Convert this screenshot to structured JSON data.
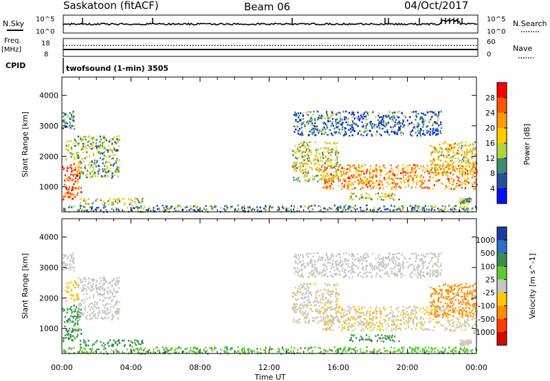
{
  "header": {
    "station": "Saskatoon (fitACF)",
    "beam": "Beam 06",
    "date": "04/Oct/2017"
  },
  "strip": {
    "nsky_label": "N.Sky",
    "nsearch_label": "N.Search",
    "nsky_ticks": [
      "10^5",
      "10^0"
    ],
    "nsky_ticks_right": [
      "10^5",
      "10^0"
    ],
    "freq_label_1": "Freq.",
    "freq_label_2": "[MHz]",
    "freq_ticks": [
      "18",
      "8"
    ],
    "nave_label": "Nave",
    "nave_ticks": [
      "60",
      "0"
    ],
    "cpid_label": "CPID",
    "cpid_text": "twofsound (1-min) 3505"
  },
  "panels": {
    "power": {
      "ylabel": "Slant Range [km]",
      "yticks": [
        "4000",
        "3000",
        "2000",
        "1000"
      ],
      "colorbar_label": "Power [dB]",
      "colorbar_ticks": [
        "28",
        "24",
        "20",
        "16",
        "12",
        "8",
        "4"
      ],
      "colorbar_colors": [
        "#ff0000",
        "#ff5500",
        "#ff9a00",
        "#ffcc00",
        "#b4d43c",
        "#3c8c6e",
        "#2050a0",
        "#0010ff"
      ]
    },
    "velocity": {
      "ylabel": "Slant Range [km]",
      "yticks": [
        "4000",
        "3000",
        "2000",
        "1000"
      ],
      "colorbar_label": "Velocity [m s^-1]",
      "colorbar_ticks": [
        "1000",
        "500",
        "100",
        "25",
        "-25",
        "-100",
        "-500",
        "-1000"
      ],
      "colorbar_colors": [
        "#1e3ca0",
        "#2e6ec8",
        "#3c8c50",
        "#64c832",
        "#c8c8c0",
        "#ffc800",
        "#ff8c00",
        "#ff3c00",
        "#dc0000"
      ]
    }
  },
  "xaxis": {
    "ticks": [
      "00:00",
      "04:00",
      "08:00",
      "12:00",
      "16:00",
      "20:00",
      "00:00"
    ],
    "label": "Time UT"
  },
  "chart_data": {
    "type": "heatmap",
    "title": "Saskatoon (fitACF)",
    "x_range_hours": [
      0,
      24
    ],
    "y_range_km": [
      180,
      4600
    ],
    "power_color_scale_db": [
      4,
      8,
      12,
      16,
      20,
      24,
      28
    ],
    "velocity_color_scale_ms": [
      -1000,
      -500,
      -100,
      -25,
      25,
      100,
      500,
      1000
    ],
    "scatter_regions": [
      {
        "t_start": 0.0,
        "t_end": 1.1,
        "range_min_km": 600,
        "range_max_km": 1800,
        "power_db": 26,
        "velocity_ms": 150
      },
      {
        "t_start": 0.2,
        "t_end": 0.9,
        "range_min_km": 1900,
        "range_max_km": 2600,
        "power_db": 14,
        "velocity_ms": -50
      },
      {
        "t_start": 0.0,
        "t_end": 0.7,
        "range_min_km": 2900,
        "range_max_km": 3500,
        "power_db": 9,
        "velocity_ms": 0
      },
      {
        "t_start": 0.9,
        "t_end": 3.3,
        "range_min_km": 1300,
        "range_max_km": 2700,
        "power_db": 12,
        "velocity_ms": 0
      },
      {
        "t_start": 1.0,
        "t_end": 4.7,
        "range_min_km": 450,
        "range_max_km": 650,
        "power_db": 14,
        "velocity_ms": 200
      },
      {
        "t_start": 0.0,
        "t_end": 24.0,
        "range_min_km": 200,
        "range_max_km": 420,
        "power_db": 10,
        "velocity_ms": 80
      },
      {
        "t_start": 13.3,
        "t_end": 16.0,
        "range_min_km": 1200,
        "range_max_km": 2500,
        "power_db": 16,
        "velocity_ms": -10
      },
      {
        "t_start": 15.0,
        "t_end": 24.0,
        "range_min_km": 950,
        "range_max_km": 1750,
        "power_db": 22,
        "velocity_ms": -20
      },
      {
        "t_start": 21.3,
        "t_end": 24.0,
        "range_min_km": 1400,
        "range_max_km": 2500,
        "power_db": 18,
        "velocity_ms": -250
      },
      {
        "t_start": 13.4,
        "t_end": 22.0,
        "range_min_km": 2700,
        "range_max_km": 3500,
        "power_db": 8,
        "velocity_ms": 0
      },
      {
        "t_start": 16.6,
        "t_end": 19.5,
        "range_min_km": 600,
        "range_max_km": 820,
        "power_db": 14,
        "velocity_ms": 150
      },
      {
        "t_start": 23.0,
        "t_end": 23.7,
        "range_min_km": 450,
        "range_max_km": 650,
        "power_db": 12,
        "velocity_ms": 0
      }
    ]
  }
}
